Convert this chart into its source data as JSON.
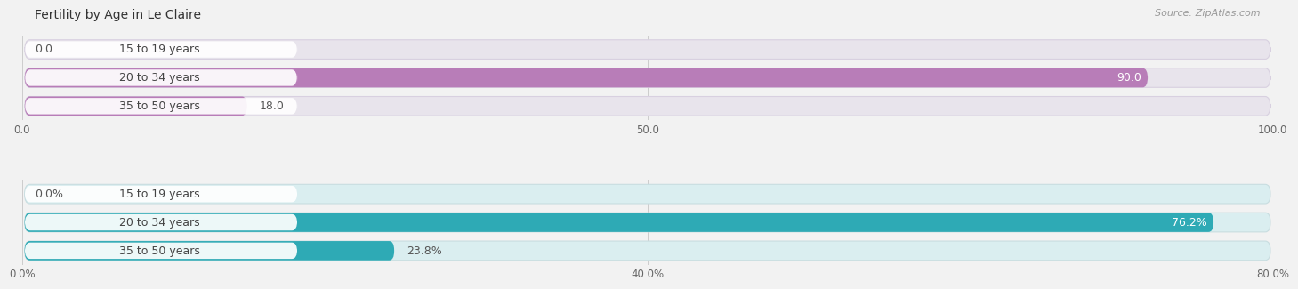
{
  "title": "Fertility by Age in Le Claire",
  "source_text": "Source: ZipAtlas.com",
  "top_chart": {
    "categories": [
      "15 to 19 years",
      "20 to 34 years",
      "35 to 50 years"
    ],
    "values": [
      0.0,
      90.0,
      18.0
    ],
    "xlim": [
      0,
      100
    ],
    "xticks": [
      0.0,
      50.0,
      100.0
    ],
    "xtick_labels": [
      "0.0",
      "50.0",
      "100.0"
    ],
    "bar_color": "#b87db8",
    "bar_bg_color": "#e8e4ec",
    "bar_border_color": "#d8d0e0"
  },
  "bottom_chart": {
    "categories": [
      "15 to 19 years",
      "20 to 34 years",
      "35 to 50 years"
    ],
    "values": [
      0.0,
      76.2,
      23.8
    ],
    "xlim": [
      0,
      80
    ],
    "xticks": [
      0.0,
      40.0,
      80.0
    ],
    "xtick_labels": [
      "0.0%",
      "40.0%",
      "80.0%"
    ],
    "bar_color": "#2eaab5",
    "bar_bg_color": "#daeef0",
    "bar_border_color": "#c8dde0"
  },
  "bg_color": "#f2f2f2",
  "title_fontsize": 10,
  "label_fontsize": 9,
  "tick_fontsize": 8.5,
  "source_fontsize": 8
}
